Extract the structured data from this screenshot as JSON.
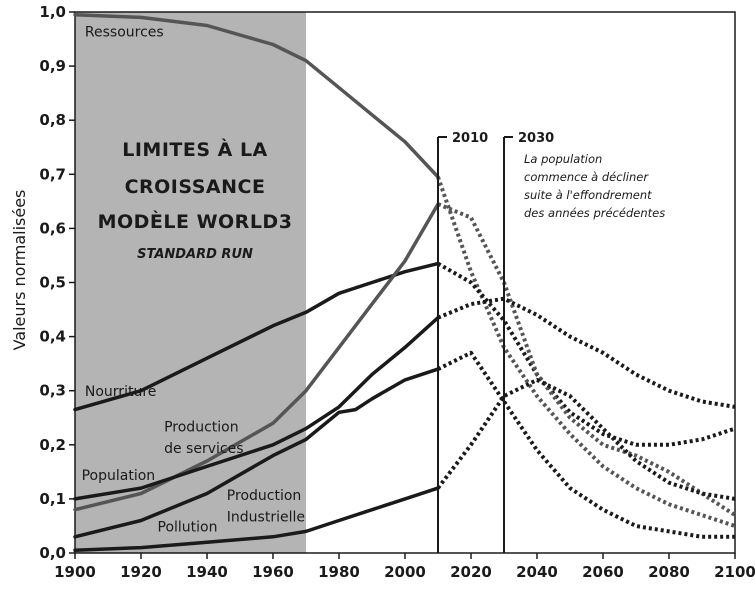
{
  "chart_data": {
    "type": "line",
    "title_lines": [
      "LIMITES À LA",
      "CROISSANCE",
      "MODÈLE WORLD3"
    ],
    "subtitle": "STANDARD RUN",
    "ylabel": "Valeurs normalisées",
    "xlabel": "",
    "xlim": [
      1900,
      2100
    ],
    "ylim": [
      0,
      1
    ],
    "x_ticks": [
      "1900",
      "1920",
      "1940",
      "1960",
      "1980",
      "2000",
      "2020",
      "2040",
      "2060",
      "2080",
      "2100"
    ],
    "y_ticks": [
      "0,0",
      "0,1",
      "0,2",
      "0,3",
      "0,4",
      "0,5",
      "0,6",
      "0,7",
      "0,8",
      "0,9",
      "1,0"
    ],
    "shaded_region": [
      1900,
      1970
    ],
    "solid_until": 2010,
    "vertical_markers": [
      {
        "x": 2010,
        "label": "2010"
      },
      {
        "x": 2030,
        "label": "2030",
        "note_lines": [
          "La population",
          "commence à décliner",
          "suite à l'effondrement",
          "des années précédentes"
        ]
      }
    ],
    "series": [
      {
        "name": "Ressources",
        "color": "#555555",
        "x": [
          1900,
          1920,
          1940,
          1960,
          1970,
          1980,
          1990,
          2000,
          2010,
          2020,
          2030,
          2040,
          2050,
          2060,
          2070,
          2080,
          2090,
          2100
        ],
        "y": [
          0.995,
          0.99,
          0.975,
          0.94,
          0.91,
          0.86,
          0.81,
          0.76,
          0.695,
          0.52,
          0.38,
          0.29,
          0.22,
          0.16,
          0.12,
          0.09,
          0.07,
          0.05
        ]
      },
      {
        "name": "Nourriture",
        "color": "#1a1a1a",
        "x": [
          1900,
          1920,
          1940,
          1960,
          1970,
          1980,
          1990,
          2000,
          2010,
          2020,
          2030,
          2040,
          2050,
          2060,
          2070,
          2080,
          2090,
          2100
        ],
        "y": [
          0.265,
          0.3,
          0.36,
          0.42,
          0.445,
          0.48,
          0.5,
          0.52,
          0.535,
          0.5,
          0.43,
          0.33,
          0.26,
          0.22,
          0.2,
          0.2,
          0.21,
          0.23
        ]
      },
      {
        "name": "Production de services",
        "color": "#555555",
        "x": [
          1900,
          1920,
          1940,
          1960,
          1970,
          1980,
          1990,
          2000,
          2010,
          2020,
          2030,
          2040,
          2050,
          2060,
          2070,
          2080,
          2090,
          2100
        ],
        "y": [
          0.08,
          0.11,
          0.17,
          0.24,
          0.3,
          0.38,
          0.46,
          0.54,
          0.645,
          0.62,
          0.5,
          0.33,
          0.25,
          0.2,
          0.18,
          0.15,
          0.11,
          0.07
        ]
      },
      {
        "name": "Population",
        "color": "#1a1a1a",
        "x": [
          1900,
          1920,
          1940,
          1960,
          1970,
          1980,
          1990,
          2000,
          2010,
          2020,
          2030,
          2040,
          2050,
          2060,
          2070,
          2080,
          2090,
          2100
        ],
        "y": [
          0.1,
          0.12,
          0.16,
          0.2,
          0.23,
          0.27,
          0.33,
          0.38,
          0.435,
          0.46,
          0.47,
          0.44,
          0.4,
          0.37,
          0.33,
          0.3,
          0.28,
          0.27
        ]
      },
      {
        "name": "Production Industrielle",
        "color": "#1a1a1a",
        "x": [
          1900,
          1920,
          1940,
          1960,
          1970,
          1980,
          1985,
          1990,
          2000,
          2010,
          2020,
          2030,
          2040,
          2050,
          2060,
          2070,
          2080,
          2090,
          2100
        ],
        "y": [
          0.03,
          0.06,
          0.11,
          0.18,
          0.21,
          0.26,
          0.265,
          0.285,
          0.32,
          0.34,
          0.37,
          0.28,
          0.19,
          0.12,
          0.08,
          0.05,
          0.04,
          0.03,
          0.03
        ]
      },
      {
        "name": "Pollution",
        "color": "#1a1a1a",
        "x": [
          1900,
          1920,
          1940,
          1960,
          1970,
          1980,
          1990,
          2000,
          2010,
          2020,
          2030,
          2040,
          2050,
          2060,
          2070,
          2080,
          2090,
          2100
        ],
        "y": [
          0.005,
          0.01,
          0.02,
          0.03,
          0.04,
          0.06,
          0.08,
          0.1,
          0.12,
          0.2,
          0.29,
          0.32,
          0.29,
          0.23,
          0.17,
          0.13,
          0.11,
          0.1
        ]
      }
    ],
    "series_labels": [
      {
        "text": "Ressources",
        "x": 1903,
        "y": 0.955
      },
      {
        "text": "Nourriture",
        "x": 1903,
        "y": 0.29
      },
      {
        "text": "Production",
        "x": 1927,
        "y": 0.225
      },
      {
        "text": "de services",
        "x": 1927,
        "y": 0.185
      },
      {
        "text": "Population",
        "x": 1902,
        "y": 0.135
      },
      {
        "text": "Production",
        "x": 1946,
        "y": 0.098
      },
      {
        "text": "Industrielle",
        "x": 1946,
        "y": 0.058
      },
      {
        "text": "Pollution",
        "x": 1925,
        "y": 0.04
      }
    ]
  }
}
